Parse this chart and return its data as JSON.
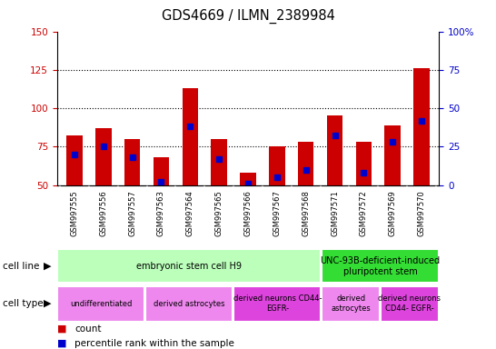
{
  "title": "GDS4669 / ILMN_2389984",
  "samples": [
    "GSM997555",
    "GSM997556",
    "GSM997557",
    "GSM997563",
    "GSM997564",
    "GSM997565",
    "GSM997566",
    "GSM997567",
    "GSM997568",
    "GSM997571",
    "GSM997572",
    "GSM997569",
    "GSM997570"
  ],
  "count_values": [
    82,
    87,
    80,
    68,
    113,
    80,
    58,
    75,
    78,
    95,
    78,
    89,
    126
  ],
  "percentile_values": [
    20,
    25,
    18,
    2,
    38,
    17,
    1,
    5,
    10,
    32,
    8,
    28,
    42
  ],
  "ylim_left": [
    50,
    150
  ],
  "ylim_right": [
    0,
    100
  ],
  "yticks_left": [
    50,
    75,
    100,
    125,
    150
  ],
  "yticks_right": [
    0,
    25,
    50,
    75,
    100
  ],
  "left_axis_color": "#cc0000",
  "right_axis_color": "#0000cc",
  "bar_color_red": "#cc0000",
  "bar_color_blue": "#0000cc",
  "grid_dotted_values": [
    75,
    100,
    125
  ],
  "cell_line_labels": [
    {
      "text": "embryonic stem cell H9",
      "start": 0,
      "end": 9,
      "color": "#bbffbb"
    },
    {
      "text": "UNC-93B-deficient-induced\npluripotent stem",
      "start": 9,
      "end": 13,
      "color": "#33dd33"
    }
  ],
  "cell_type_labels": [
    {
      "text": "undifferentiated",
      "start": 0,
      "end": 3,
      "color": "#ee88ee"
    },
    {
      "text": "derived astrocytes",
      "start": 3,
      "end": 6,
      "color": "#ee88ee"
    },
    {
      "text": "derived neurons CD44-\nEGFR-",
      "start": 6,
      "end": 9,
      "color": "#dd44dd"
    },
    {
      "text": "derived\nastrocytes",
      "start": 9,
      "end": 11,
      "color": "#ee88ee"
    },
    {
      "text": "derived neurons\nCD44- EGFR-",
      "start": 11,
      "end": 13,
      "color": "#dd44dd"
    }
  ],
  "legend_count_color": "#cc0000",
  "legend_pct_color": "#0000cc",
  "xtick_bg": "#cccccc",
  "xtick_divider": "#ffffff"
}
